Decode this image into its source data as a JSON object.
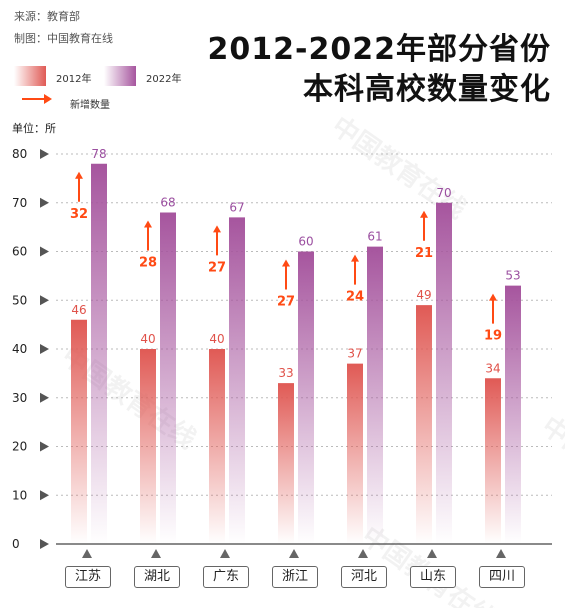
{
  "source": {
    "line1": "来源：教育部",
    "line2": "制图：中国教育在线"
  },
  "title_line1": "2012-2022年部分省份",
  "title_line2": "本科高校数量变化",
  "legend": {
    "s2012": "2012年",
    "s2022": "2022年",
    "increase": "新增数量"
  },
  "colors": {
    "s2012": "#e05a55",
    "s2022": "#a6559e",
    "arrow": "#ff4a14",
    "label2012": "#e0524a",
    "label2022": "#9b4fa0",
    "increaseLabel": "#ff4a14"
  },
  "watermark": "中国教育在线",
  "chart_data": {
    "type": "bar",
    "ylabel": "单位：所",
    "ylim": [
      0,
      80
    ],
    "yticks": [
      0,
      10,
      20,
      30,
      40,
      50,
      60,
      70,
      80
    ],
    "grid": true,
    "legend_position": "top-left",
    "categories": [
      "江苏",
      "湖北",
      "广东",
      "浙江",
      "河北",
      "山东",
      "四川"
    ],
    "series": [
      {
        "name": "2012年",
        "values": [
          46,
          40,
          40,
          33,
          37,
          49,
          34
        ]
      },
      {
        "name": "2022年",
        "values": [
          78,
          68,
          67,
          60,
          61,
          70,
          53
        ]
      }
    ],
    "increase": {
      "name": "新增数量",
      "values": [
        32,
        28,
        27,
        27,
        24,
        21,
        19
      ]
    }
  }
}
